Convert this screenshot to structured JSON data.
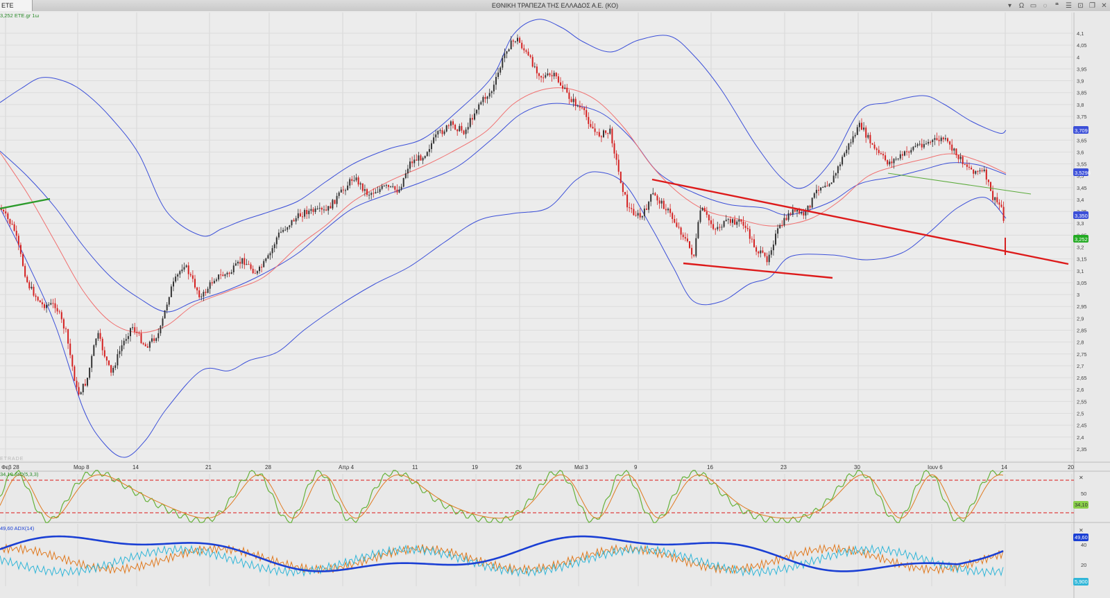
{
  "window": {
    "tab_label": "ETE",
    "title": "ΕΘΝΙΚΗ ΤΡΑΠΕΖΑ ΤΗΣ ΕΛΛΑΔΟΣ Α.Ε. (ΚΟ)",
    "buttons": [
      {
        "name": "dropdown-icon",
        "glyph": "▾"
      },
      {
        "name": "omega-icon",
        "glyph": "Ω"
      },
      {
        "name": "window-icon",
        "glyph": "▭"
      },
      {
        "name": "chat-icon",
        "glyph": "◌"
      },
      {
        "name": "quote-icon",
        "glyph": "❝"
      },
      {
        "name": "list-icon",
        "glyph": "☰"
      },
      {
        "name": "lock-icon",
        "glyph": "⊡"
      },
      {
        "name": "restore-icon",
        "glyph": "❐"
      },
      {
        "name": "close-icon",
        "glyph": "✕"
      }
    ]
  },
  "watermark": "ETRADE",
  "chart_data": [
    {
      "type": "line",
      "panel": "price",
      "legend_text": "3,252 ETE.gr 1ω",
      "y_ticks": [
        "4,1",
        "4,05",
        "4",
        "3,95",
        "3,9",
        "3,85",
        "3,8",
        "3,75",
        "3,7",
        "3,65",
        "3,6",
        "3,55",
        "3,5",
        "3,45",
        "3,4",
        "3,35",
        "3,3",
        "3,25",
        "3,2",
        "3,15",
        "3,1",
        "3,05",
        "3",
        "2,95",
        "2,9",
        "2,85",
        "2,8",
        "2,75",
        "2,7",
        "2,65",
        "2,6",
        "2,55",
        "2,5",
        "2,45",
        "2,4",
        "2,35"
      ],
      "ylim": [
        2.32,
        4.15
      ],
      "x_ticks": [
        "Φεβ 28",
        "Μαρ 8",
        "14",
        "21",
        "28",
        "Απρ 4",
        "11",
        "19",
        "26",
        "Μαϊ 3",
        "9",
        "16",
        "23",
        "30",
        "Ιουν 6",
        "14",
        "20"
      ],
      "price_labels": [
        {
          "text": "3,709",
          "color": "#3b4fd8"
        },
        {
          "text": "3,5298",
          "color": "#3b4fd8"
        },
        {
          "text": "3,350",
          "color": "#3b4fd8"
        },
        {
          "text": "3,252",
          "color": "#22aa22"
        }
      ],
      "series": [
        {
          "role": "upper_band",
          "color": "#3b4fd8"
        },
        {
          "role": "middle_band",
          "color": "#3b4fd8"
        },
        {
          "role": "lower_band",
          "color": "#3b4fd8"
        },
        {
          "role": "moving_average",
          "color": "#f07070"
        },
        {
          "role": "candles",
          "up_color": "#333333",
          "down_color": "#d42020"
        }
      ],
      "annotations": [
        "red trendline",
        "green trendline",
        "green trendline"
      ]
    },
    {
      "type": "line",
      "panel": "stochastic",
      "legend_text": "34,10 StO(5,3,3)",
      "y_ticks": [
        "50"
      ],
      "ylim": [
        0,
        100
      ],
      "levels": [
        80,
        20
      ],
      "value_label": "34,10",
      "series": [
        {
          "role": "k",
          "color": "#66b23a"
        },
        {
          "role": "d",
          "color": "#e07a20"
        }
      ]
    },
    {
      "type": "line",
      "panel": "adx",
      "legend_text": "49,60 ADX(14)",
      "y_ticks": [
        "40",
        "20"
      ],
      "ylim": [
        0,
        60
      ],
      "value_labels": [
        {
          "text": "49,60",
          "color": "#1a3fd4"
        },
        {
          "text": "5,900",
          "color": "#31b6d8"
        }
      ],
      "series": [
        {
          "role": "adx",
          "color": "#1a3fd4"
        },
        {
          "role": "plus_di",
          "color": "#e07a20"
        },
        {
          "role": "minus_di",
          "color": "#31b6d8"
        }
      ]
    }
  ]
}
